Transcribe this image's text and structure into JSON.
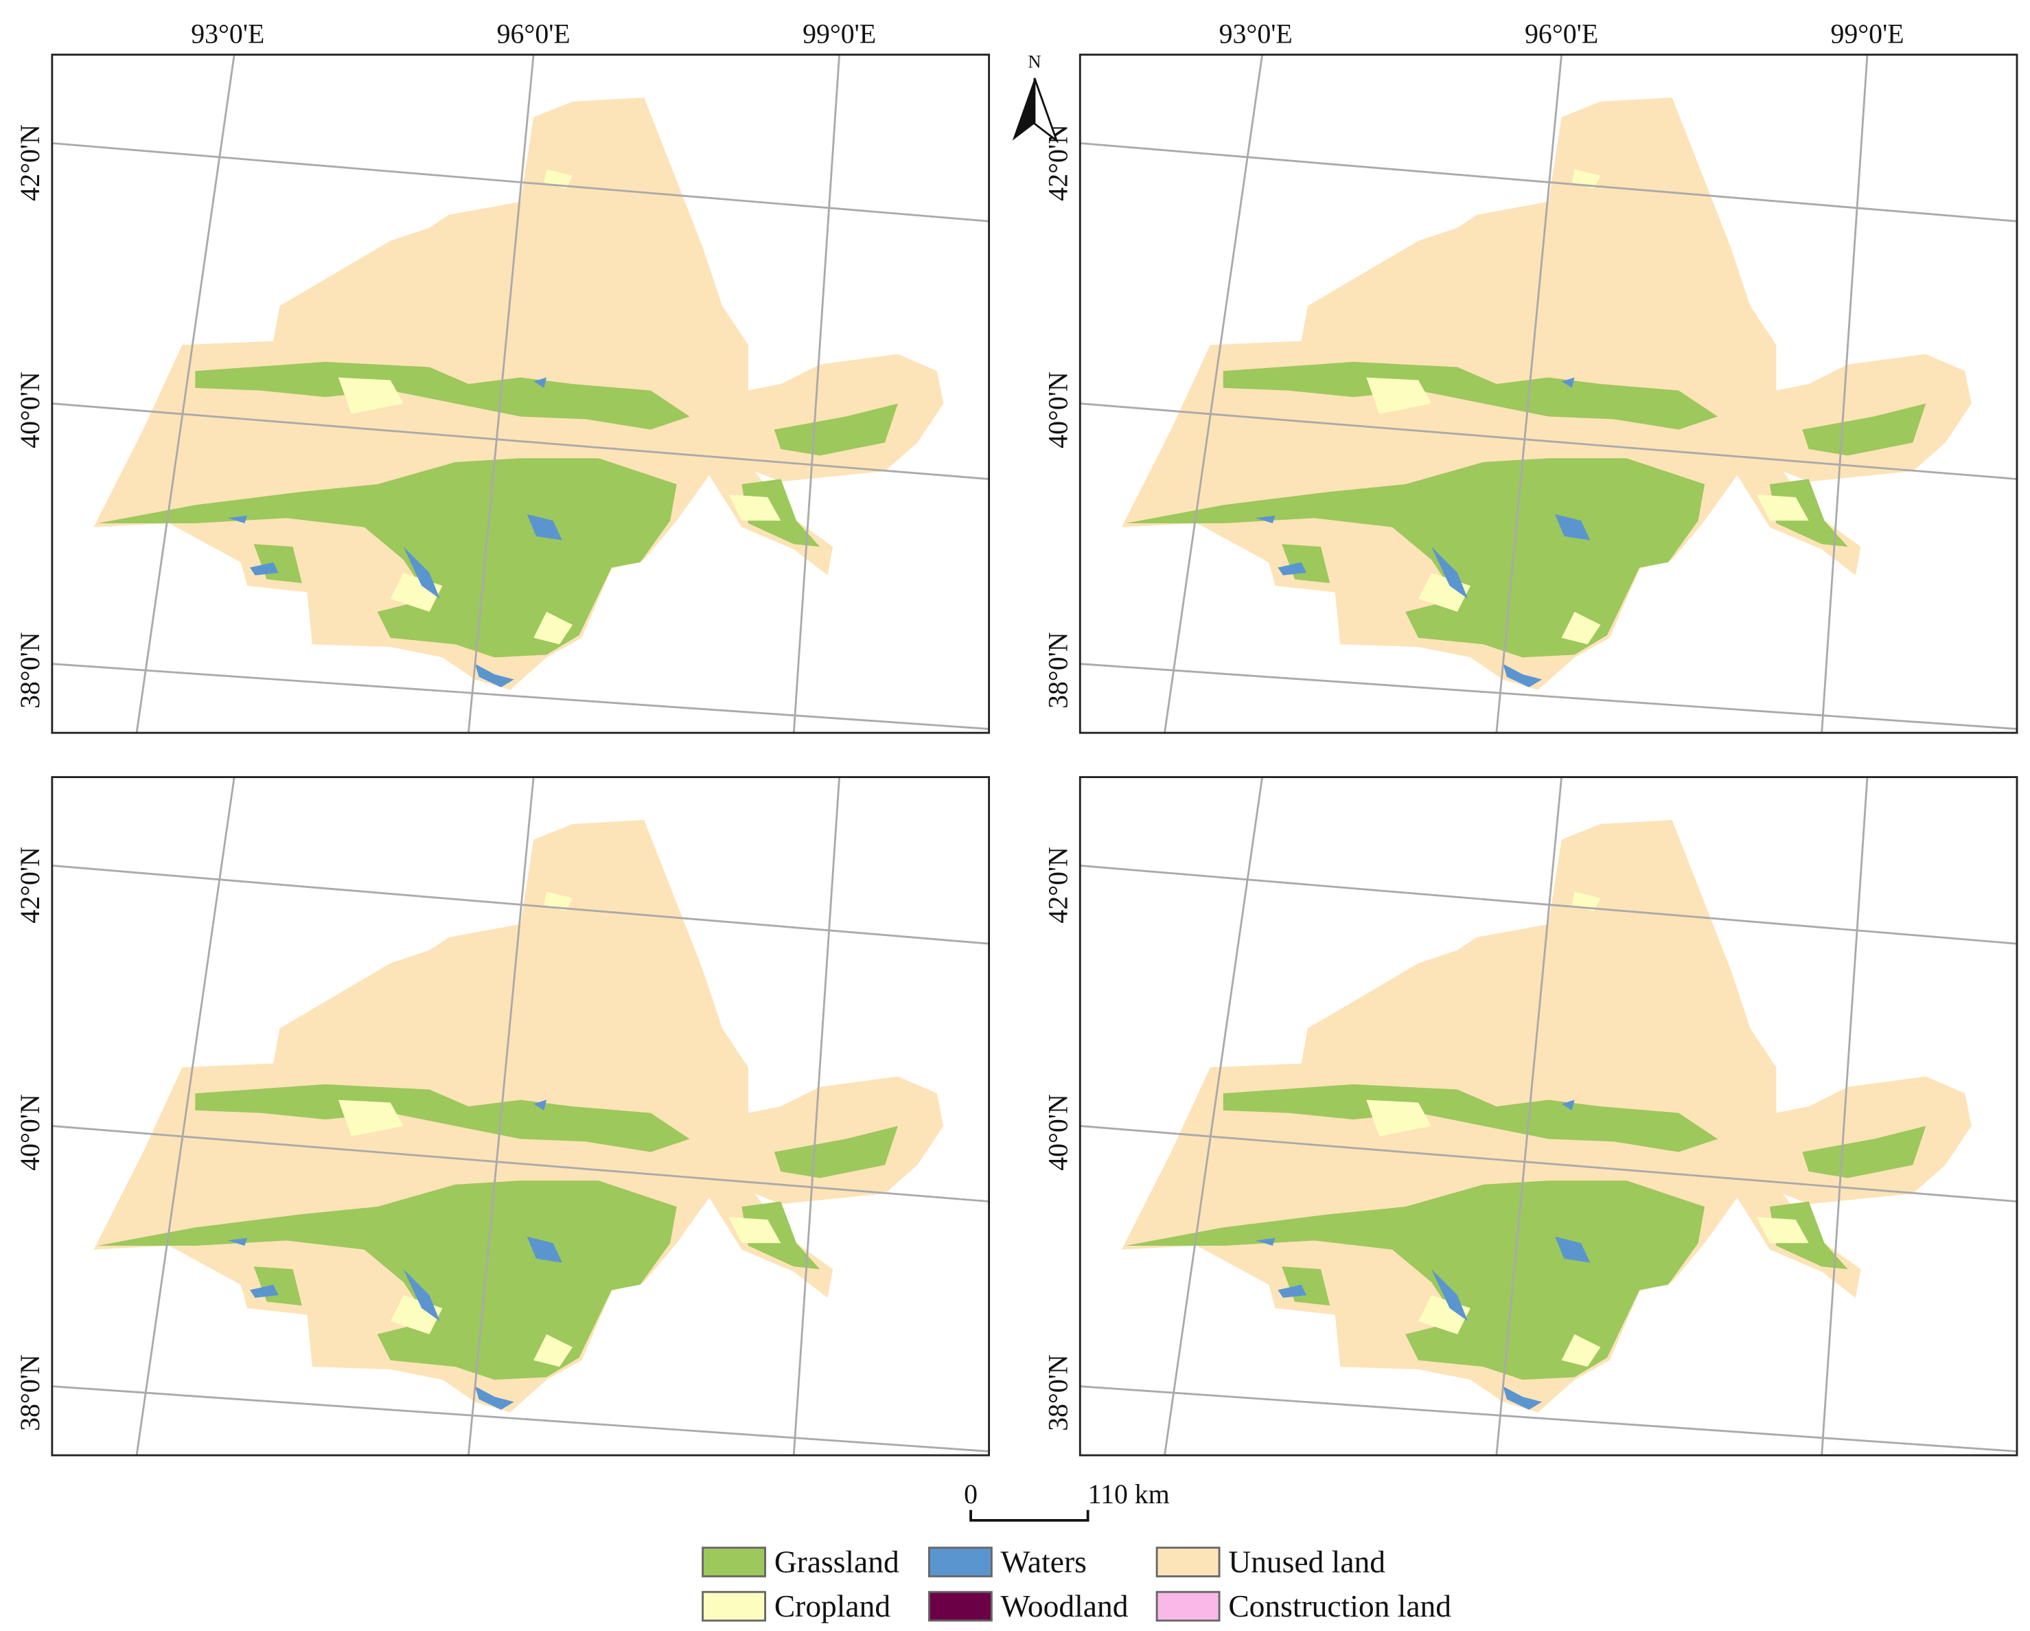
{
  "map": {
    "longitude_labels": [
      "93°0'E",
      "96°0'E",
      "99°0'E"
    ],
    "latitude_labels": [
      "42°0'N",
      "40°0'N",
      "38°0'N"
    ],
    "north_arrow": "N",
    "scale_bar": {
      "start": "0",
      "end": "110 km"
    },
    "legend": [
      {
        "label": "Grassland",
        "color": "#9cc85c"
      },
      {
        "label": "Cropland",
        "color": "#fdfdc0"
      },
      {
        "label": "Waters",
        "color": "#5b95d0"
      },
      {
        "label": "Woodland",
        "color": "#6b0046"
      },
      {
        "label": "Unused land",
        "color": "#fde3b8"
      },
      {
        "label": "Construction land",
        "color": "#f9b8e8"
      }
    ]
  }
}
